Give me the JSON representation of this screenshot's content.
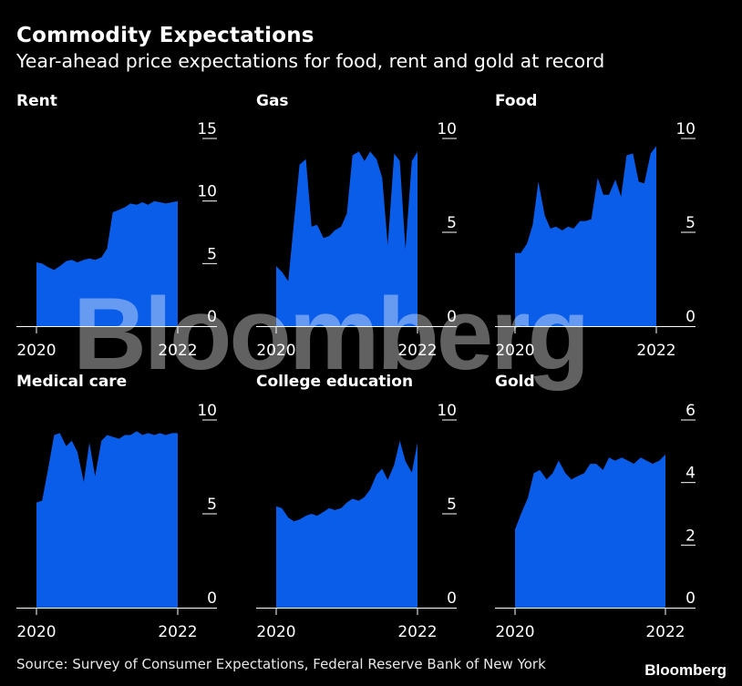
{
  "header": {
    "title": "Commodity Expectations",
    "subtitle": "Year-ahead price expectations for food, rent and gold at record"
  },
  "footer": {
    "source": "Source: Survey of Consumer Expectations, Federal Reserve Bank of New York",
    "logo": "Bloomberg"
  },
  "watermark": "Bloomberg",
  "colors": {
    "area": "#0a5de8",
    "background": "#000000",
    "text": "#ffffff",
    "axis": "#ffffff"
  },
  "chart_data": [
    {
      "type": "area",
      "title": "Rent",
      "xlim": [
        2020,
        2022
      ],
      "xticks": [
        "2020",
        "2022"
      ],
      "ylim": [
        0,
        15
      ],
      "yticks": [
        0,
        5,
        10,
        15
      ],
      "x": [
        2020.0,
        2020.08,
        2020.17,
        2020.25,
        2020.33,
        2020.42,
        2020.5,
        2020.58,
        2020.67,
        2020.75,
        2020.83,
        2020.92,
        2021.0,
        2021.08,
        2021.17,
        2021.25,
        2021.33,
        2021.42,
        2021.5,
        2021.58,
        2021.67,
        2021.75,
        2021.83,
        2021.92,
        2022.0
      ],
      "values": [
        5.1,
        5.0,
        4.7,
        4.5,
        4.8,
        5.2,
        5.3,
        5.1,
        5.3,
        5.4,
        5.3,
        5.5,
        6.2,
        9.1,
        9.3,
        9.5,
        9.8,
        9.7,
        9.9,
        9.7,
        10.0,
        9.9,
        9.8,
        9.9,
        10.0
      ]
    },
    {
      "type": "area",
      "title": "Gas",
      "xlim": [
        2020,
        2022
      ],
      "xticks": [
        "2020",
        "2022"
      ],
      "ylim": [
        0,
        10
      ],
      "yticks": [
        0,
        5,
        10
      ],
      "x": [
        2020.0,
        2020.08,
        2020.17,
        2020.25,
        2020.33,
        2020.42,
        2020.5,
        2020.58,
        2020.67,
        2020.75,
        2020.83,
        2020.92,
        2021.0,
        2021.08,
        2021.17,
        2021.25,
        2021.33,
        2021.42,
        2021.5,
        2021.58,
        2021.67,
        2021.75,
        2021.83,
        2021.92,
        2022.0
      ],
      "values": [
        3.2,
        2.9,
        2.4,
        5.5,
        8.6,
        8.9,
        5.3,
        5.4,
        4.7,
        4.8,
        5.1,
        5.3,
        6.0,
        9.1,
        9.3,
        8.8,
        9.3,
        8.9,
        7.9,
        4.3,
        9.2,
        8.8,
        4.1,
        8.8,
        9.3
      ]
    },
    {
      "type": "area",
      "title": "Food",
      "xlim": [
        2020,
        2022
      ],
      "xticks": [
        "2020",
        "2022"
      ],
      "ylim": [
        0,
        10
      ],
      "yticks": [
        0,
        5,
        10
      ],
      "x": [
        2020.0,
        2020.08,
        2020.17,
        2020.25,
        2020.33,
        2020.42,
        2020.5,
        2020.58,
        2020.67,
        2020.75,
        2020.83,
        2020.92,
        2021.0,
        2021.08,
        2021.17,
        2021.25,
        2021.33,
        2021.42,
        2021.5,
        2021.58,
        2021.67,
        2021.75,
        2021.83,
        2021.92,
        2022.0
      ],
      "values": [
        3.9,
        3.9,
        4.4,
        5.4,
        7.7,
        5.9,
        5.2,
        5.3,
        5.1,
        5.3,
        5.2,
        5.6,
        5.6,
        5.7,
        7.9,
        7.0,
        7.0,
        7.8,
        6.9,
        9.1,
        9.2,
        7.7,
        7.6,
        9.2,
        9.6
      ]
    },
    {
      "type": "area",
      "title": "Medical care",
      "xlim": [
        2020,
        2022
      ],
      "xticks": [
        "2020",
        "2022"
      ],
      "ylim": [
        0,
        10
      ],
      "yticks": [
        0,
        5,
        10
      ],
      "x": [
        2020.0,
        2020.08,
        2020.17,
        2020.25,
        2020.33,
        2020.42,
        2020.5,
        2020.58,
        2020.67,
        2020.75,
        2020.83,
        2020.92,
        2021.0,
        2021.08,
        2021.17,
        2021.25,
        2021.33,
        2021.42,
        2021.5,
        2021.58,
        2021.67,
        2021.75,
        2021.83,
        2021.92,
        2022.0
      ],
      "values": [
        5.6,
        5.7,
        7.5,
        9.2,
        9.3,
        8.6,
        8.9,
        8.3,
        6.7,
        8.8,
        7.0,
        8.9,
        9.2,
        9.1,
        9.0,
        9.2,
        9.2,
        9.4,
        9.2,
        9.3,
        9.2,
        9.3,
        9.2,
        9.3,
        9.3
      ]
    },
    {
      "type": "area",
      "title": "College education",
      "xlim": [
        2020,
        2022
      ],
      "xticks": [
        "2020",
        "2022"
      ],
      "ylim": [
        0,
        10
      ],
      "yticks": [
        0,
        5,
        10
      ],
      "x": [
        2020.0,
        2020.08,
        2020.17,
        2020.25,
        2020.33,
        2020.42,
        2020.5,
        2020.58,
        2020.67,
        2020.75,
        2020.83,
        2020.92,
        2021.0,
        2021.08,
        2021.17,
        2021.25,
        2021.33,
        2021.42,
        2021.5,
        2021.58,
        2021.67,
        2021.75,
        2021.83,
        2021.92,
        2022.0
      ],
      "values": [
        5.4,
        5.3,
        4.8,
        4.6,
        4.7,
        4.9,
        5.0,
        4.9,
        5.1,
        5.3,
        5.2,
        5.3,
        5.6,
        5.8,
        5.7,
        5.9,
        6.3,
        7.1,
        7.4,
        6.8,
        7.6,
        8.9,
        7.8,
        7.2,
        8.8
      ]
    },
    {
      "type": "area",
      "title": "Gold",
      "xlim": [
        2020,
        2022
      ],
      "xticks": [
        "2020",
        "2022"
      ],
      "ylim": [
        0,
        6
      ],
      "yticks": [
        0,
        2,
        4,
        6
      ],
      "x": [
        2020.0,
        2020.08,
        2020.17,
        2020.25,
        2020.33,
        2020.42,
        2020.5,
        2020.58,
        2020.67,
        2020.75,
        2020.83,
        2020.92,
        2021.0,
        2021.08,
        2021.17,
        2021.25,
        2021.33,
        2021.42,
        2021.5,
        2021.58,
        2021.67,
        2021.75,
        2021.83,
        2021.92,
        2022.0
      ],
      "values": [
        2.5,
        3.0,
        3.5,
        4.3,
        4.4,
        4.1,
        4.3,
        4.7,
        4.3,
        4.1,
        4.2,
        4.3,
        4.6,
        4.6,
        4.4,
        4.8,
        4.7,
        4.8,
        4.7,
        4.6,
        4.8,
        4.7,
        4.6,
        4.7,
        4.9
      ]
    }
  ]
}
